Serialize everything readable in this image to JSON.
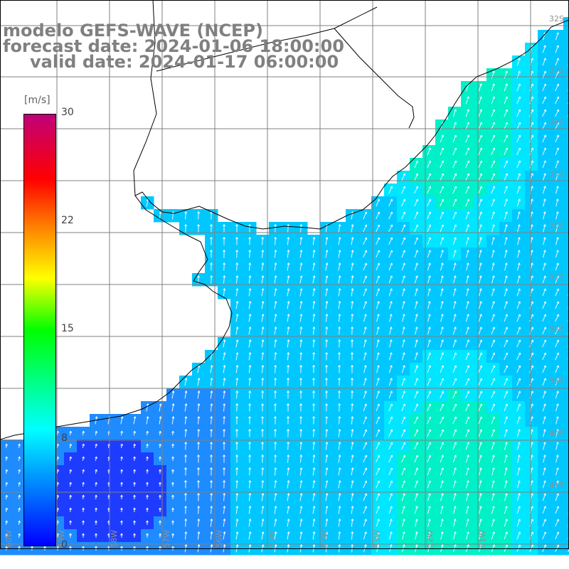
{
  "title": {
    "model": "modelo GEFS-WAVE (NCEP)",
    "forecast": "forecast date: 2024-01-06 18:00:00",
    "valid": "valid date: 2024-01-17 06:00:00"
  },
  "colorbar": {
    "unit": "[m/s]",
    "ticks": [
      "30",
      "22",
      "15",
      "8",
      "0"
    ],
    "colors": [
      "#0000ff",
      "#00c8ff",
      "#00ffff",
      "#00ff00",
      "#ffff00",
      "#ff8000",
      "#ff0000",
      "#ff00ff",
      "#c0007a"
    ]
  },
  "lat_labels": [
    "32S",
    "33S",
    "34S",
    "35S",
    "36S",
    "37S",
    "38S",
    "39S",
    "40S",
    "41S"
  ],
  "lon_labels": [
    "60W",
    "59W",
    "58W",
    "57W",
    "56W",
    "55W",
    "54W",
    "53W",
    "52W",
    "51W"
  ],
  "colors": {
    "land": "#ffffff",
    "grid": "#808080",
    "coast": "#000000",
    "arrow": "#ffffff",
    "deep_blue": "#1e3cff",
    "mid_blue": "#1e8cff",
    "light_blue": "#00c8ff",
    "cyan": "#00e6ff",
    "green_cyan": "#00f0c8"
  }
}
